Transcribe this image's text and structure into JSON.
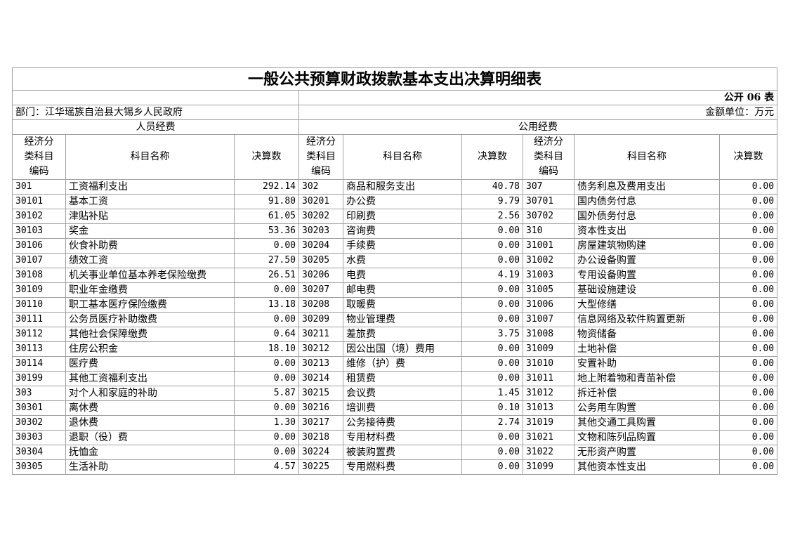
{
  "header": {
    "title": "一般公共预算财政拨款基本支出决算明细表",
    "form_no": "公开 06 表",
    "department": "部门：江华瑶族自治县大锡乡人民政府",
    "unit": "金额单位：万元"
  },
  "sections": [
    "人员经费",
    "公用经费"
  ],
  "columns": [
    "经济分\n类科目\n编码",
    "科目名称",
    "决算数",
    "经济分\n类科目\n编码",
    "科目名称",
    "决算数",
    "经济分\n类科目\n编码",
    "科目名称",
    "决算数"
  ],
  "table": {
    "rows": [
      [
        "301",
        "工资福利支出",
        "292.14",
        "302",
        "商品和服务支出",
        "40.78",
        "307",
        "债务利息及费用支出",
        "0.00"
      ],
      [
        "30101",
        "基本工资",
        "91.80",
        "30201",
        "办公费",
        "9.79",
        "30701",
        "国内债务付息",
        "0.00"
      ],
      [
        "30102",
        "津贴补贴",
        "61.05",
        "30202",
        "印刷费",
        "2.56",
        "30702",
        "国外债务付息",
        "0.00"
      ],
      [
        "30103",
        "奖金",
        "53.36",
        "30203",
        "咨询费",
        "0.00",
        "310",
        "资本性支出",
        "0.00"
      ],
      [
        "30106",
        "伙食补助费",
        "0.00",
        "30204",
        "手续费",
        "0.00",
        "31001",
        "房屋建筑物购建",
        "0.00"
      ],
      [
        "30107",
        "绩效工资",
        "27.50",
        "30205",
        "水费",
        "0.00",
        "31002",
        "办公设备购置",
        "0.00"
      ],
      [
        "30108",
        "机关事业单位基本养老保险缴费",
        "26.51",
        "30206",
        "电费",
        "4.19",
        "31003",
        "专用设备购置",
        "0.00"
      ],
      [
        "30109",
        "职业年金缴费",
        "0.00",
        "30207",
        "邮电费",
        "0.00",
        "31005",
        "基础设施建设",
        "0.00"
      ],
      [
        "30110",
        "职工基本医疗保险缴费",
        "13.18",
        "30208",
        "取暖费",
        "0.00",
        "31006",
        "大型修缮",
        "0.00"
      ],
      [
        "30111",
        "公务员医疗补助缴费",
        "0.00",
        "30209",
        "物业管理费",
        "0.00",
        "31007",
        "信息网络及软件购置更新",
        "0.00"
      ],
      [
        "30112",
        "其他社会保障缴费",
        "0.64",
        "30211",
        "差旅费",
        "3.75",
        "31008",
        "物资储备",
        "0.00"
      ],
      [
        "30113",
        "住房公积金",
        "18.10",
        "30212",
        "因公出国（境）费用",
        "0.00",
        "31009",
        "土地补偿",
        "0.00"
      ],
      [
        "30114",
        "医疗费",
        "0.00",
        "30213",
        "维修（护）费",
        "0.00",
        "31010",
        "安置补助",
        "0.00"
      ],
      [
        "30199",
        "其他工资福利支出",
        "0.00",
        "30214",
        "租赁费",
        "0.00",
        "31011",
        "地上附着物和青苗补偿",
        "0.00"
      ],
      [
        "303",
        "对个人和家庭的补助",
        "5.87",
        "30215",
        "会议费",
        "1.45",
        "31012",
        "拆迁补偿",
        "0.00"
      ],
      [
        "30301",
        "离休费",
        "0.00",
        "30216",
        "培训费",
        "0.10",
        "31013",
        "公务用车购置",
        "0.00"
      ],
      [
        "30302",
        "退休费",
        "1.30",
        "30217",
        "公务接待费",
        "2.74",
        "31019",
        "其他交通工具购置",
        "0.00"
      ],
      [
        "30303",
        "退职（役）费",
        "0.00",
        "30218",
        "专用材料费",
        "0.00",
        "31021",
        "文物和陈列品购置",
        "0.00"
      ],
      [
        "30304",
        "抚恤金",
        "0.00",
        "30224",
        "被装购置费",
        "0.00",
        "31022",
        "无形资产购置",
        "0.00"
      ],
      [
        "30305",
        "生活补助",
        "4.57",
        "30225",
        "专用燃料费",
        "0.00",
        "31099",
        "其他资本性支出",
        "0.00"
      ]
    ]
  }
}
